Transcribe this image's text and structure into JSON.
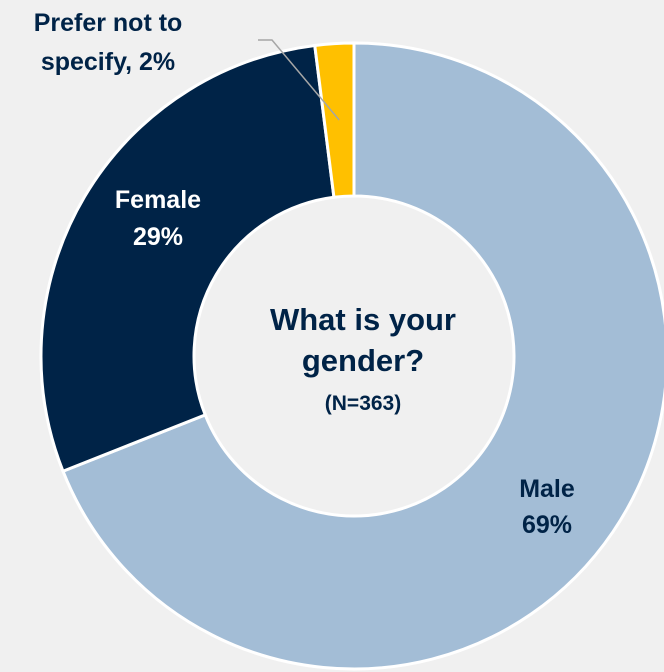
{
  "chart_data": {
    "type": "pie",
    "donut": true,
    "title": "What is your gender?",
    "subtitle": "(N=363)",
    "start_angle_deg": 0,
    "direction": "clockwise",
    "slices": [
      {
        "label": "Male",
        "value": 69,
        "value_label": "69%",
        "color": "#a3bdd6"
      },
      {
        "label": "Female",
        "value": 29,
        "value_label": "29%",
        "color": "#002347"
      },
      {
        "label": "Prefer not to specify",
        "value": 2,
        "value_label": "specify, 2%",
        "label_line1": "Prefer not to",
        "color": "#ffc000"
      }
    ],
    "label_text_color": "#002347",
    "leader_line_color": "#a6a6a6"
  },
  "center": {
    "line1": "What is your",
    "line2": "gender?",
    "line3": "(N=363)"
  }
}
